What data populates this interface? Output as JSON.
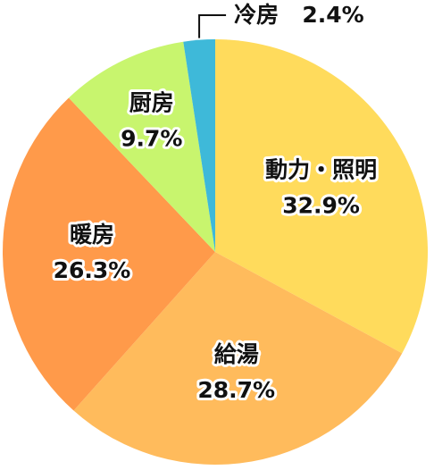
{
  "chart_data": {
    "type": "pie",
    "categories": [
      "動力・照明",
      "給湯",
      "暖房",
      "厨房",
      "冷房"
    ],
    "values": [
      32.9,
      28.7,
      26.3,
      9.7,
      2.4
    ],
    "value_labels": [
      "32.9%",
      "28.7%",
      "26.3%",
      "9.7%",
      "2.4%"
    ],
    "colors": [
      "#ffdb5c",
      "#ffbb5c",
      "#ff9a4a",
      "#c8f56e",
      "#3eb9d9"
    ]
  }
}
